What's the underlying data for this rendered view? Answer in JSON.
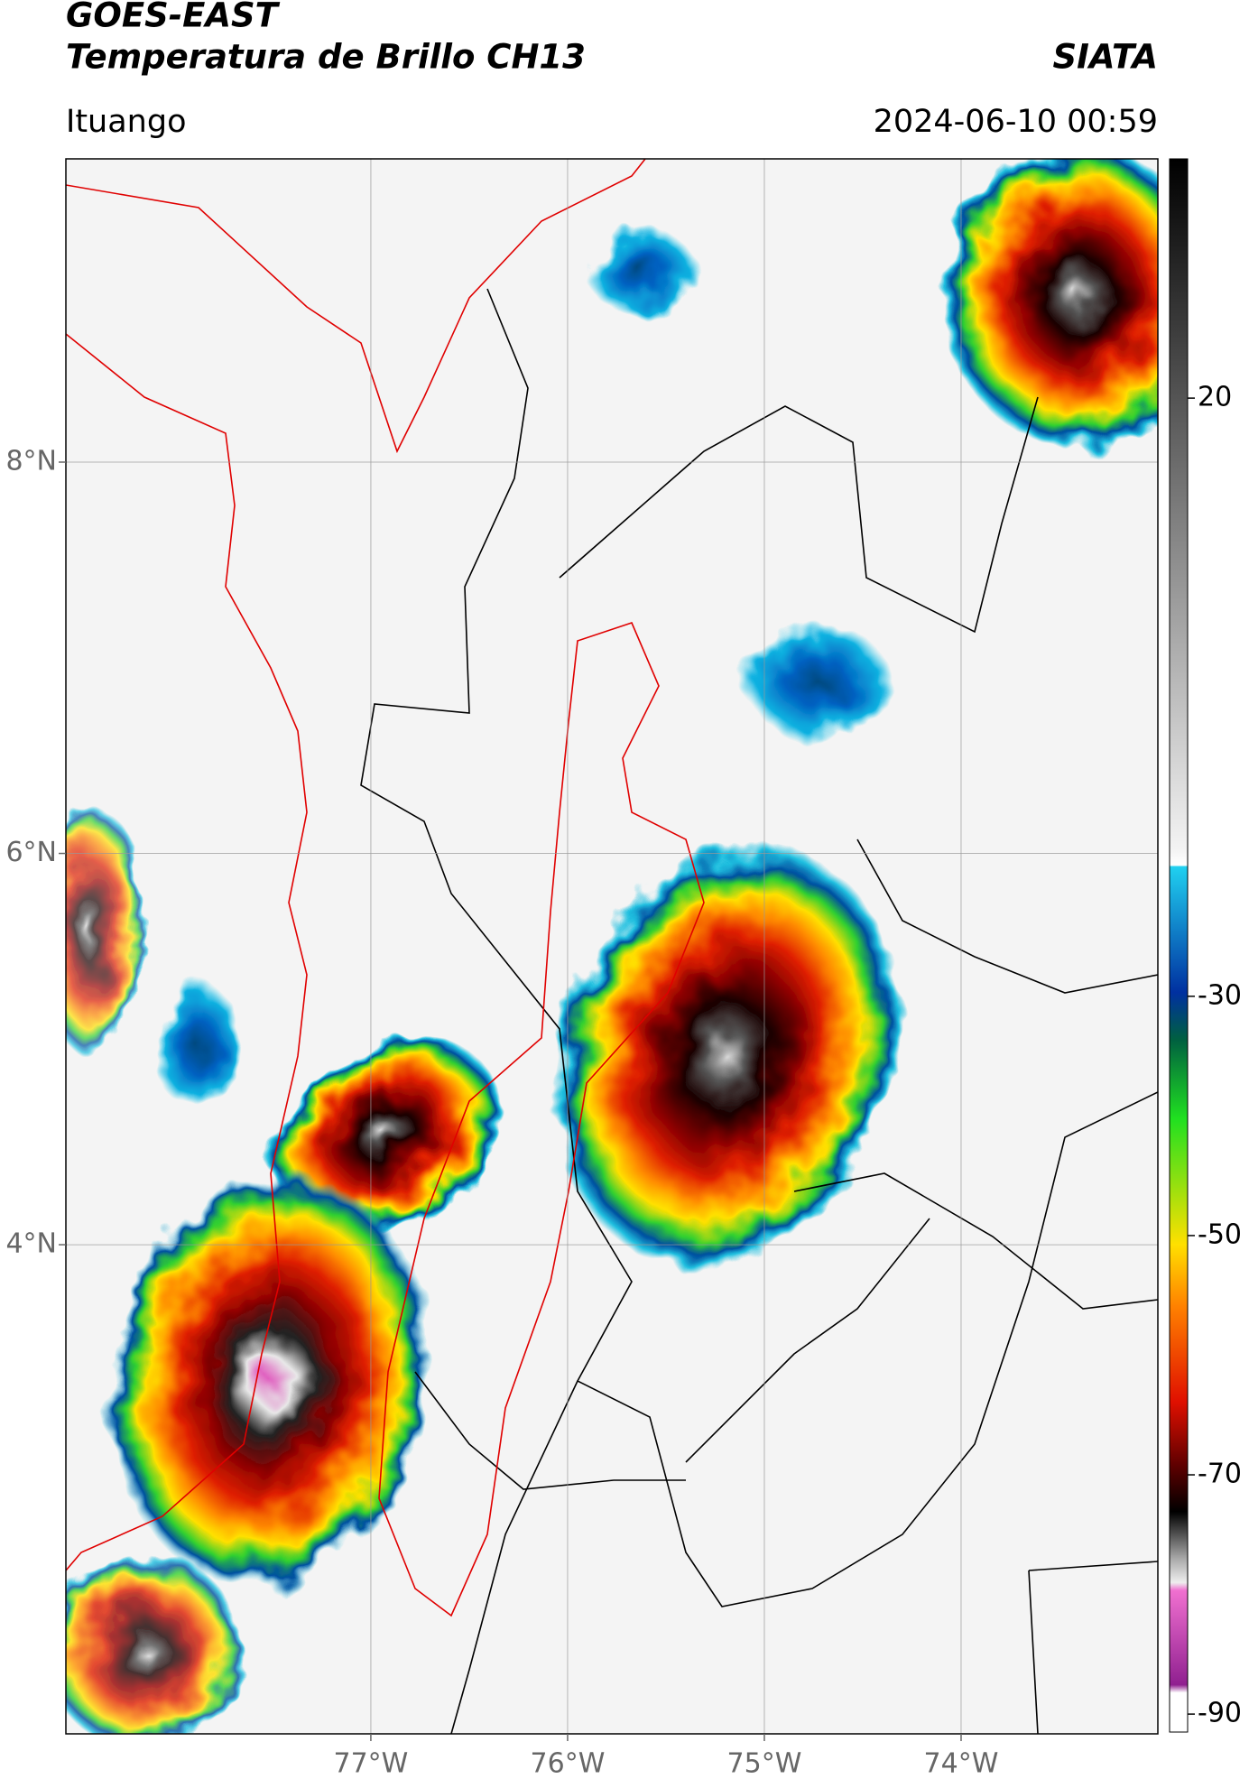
{
  "header": {
    "title": "GOES-EAST",
    "subtitle": "Temperatura de Brillo CH13",
    "source": "SIATA",
    "location": "Ituango",
    "datetime": "2024-06-10 00:59"
  },
  "map": {
    "xlim": [
      -78.55,
      -73.0
    ],
    "ylim": [
      1.5,
      9.55
    ],
    "xticks": [
      {
        "value": -77,
        "label": "77°W"
      },
      {
        "value": -76,
        "label": "76°W"
      },
      {
        "value": -75,
        "label": "75°W"
      },
      {
        "value": -74,
        "label": "74°W"
      }
    ],
    "yticks": [
      {
        "value": 8,
        "label": "8°N"
      },
      {
        "value": 6,
        "label": "6°N"
      },
      {
        "value": 4,
        "label": "4°N"
      }
    ]
  },
  "colorbar": {
    "clim": [
      -91.5,
      40
    ],
    "ticks": [
      20,
      -30,
      -50,
      -70,
      -90
    ]
  }
}
